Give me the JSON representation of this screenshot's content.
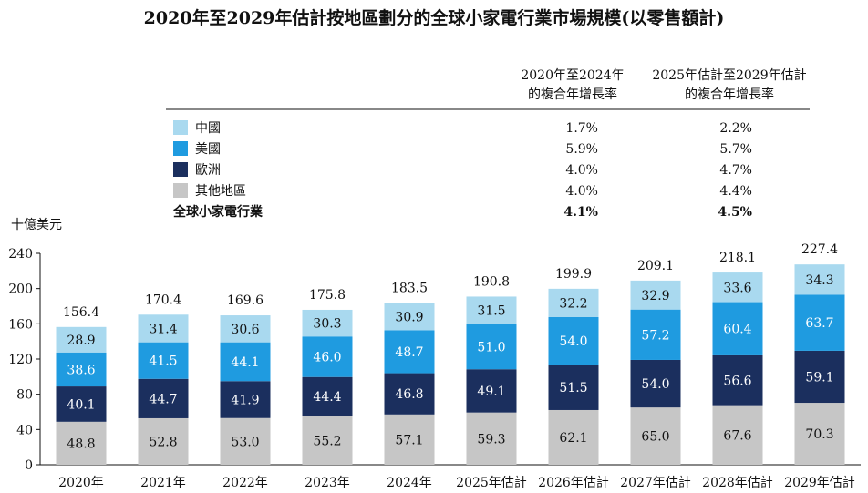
{
  "chart_data": {
    "type": "bar",
    "stacked": true,
    "title": "2020年至2029年估計按地區劃分的全球小家電行業市場規模(以零售額計)",
    "ylabel": "十億美元",
    "ylim": [
      0,
      240
    ],
    "yticks": [
      "0",
      "40",
      "80",
      "120",
      "160",
      "200",
      "240"
    ],
    "categories": [
      "2020年",
      "2021年",
      "2022年",
      "2023年",
      "2024年",
      "2025年估計",
      "2026年估計",
      "2027年估計",
      "2028年估計",
      "2029年估計"
    ],
    "totals": [
      "156.4",
      "170.4",
      "169.6",
      "175.8",
      "183.5",
      "190.8",
      "199.9",
      "209.1",
      "218.1",
      "227.4"
    ],
    "series": [
      {
        "name": "其他地區",
        "color": "#c6c6c6",
        "text_color": "#111111",
        "values": [
          48.8,
          52.8,
          53.0,
          55.2,
          57.1,
          59.3,
          62.1,
          65.0,
          67.6,
          70.3
        ],
        "labels": [
          "48.8",
          "52.8",
          "53.0",
          "55.2",
          "57.1",
          "59.3",
          "62.1",
          "65.0",
          "67.6",
          "70.3"
        ]
      },
      {
        "name": "歐洲",
        "color": "#1b2f5e",
        "text_color": "#ffffff",
        "values": [
          40.1,
          44.7,
          41.9,
          44.4,
          46.8,
          49.1,
          51.5,
          54.0,
          56.6,
          59.1
        ],
        "labels": [
          "40.1",
          "44.7",
          "41.9",
          "44.4",
          "46.8",
          "49.1",
          "51.5",
          "54.0",
          "56.6",
          "59.1"
        ]
      },
      {
        "name": "美國",
        "color": "#1f9be0",
        "text_color": "#ffffff",
        "values": [
          38.6,
          41.5,
          44.1,
          46.0,
          48.7,
          51.0,
          54.0,
          57.2,
          60.4,
          63.7
        ],
        "labels": [
          "38.6",
          "41.5",
          "44.1",
          "46.0",
          "48.7",
          "51.0",
          "54.0",
          "57.2",
          "60.4",
          "63.7"
        ]
      },
      {
        "name": "中國",
        "color": "#a9d9ef",
        "text_color": "#111111",
        "values": [
          28.9,
          31.4,
          30.6,
          30.3,
          30.9,
          31.5,
          32.2,
          32.9,
          33.6,
          34.3
        ],
        "labels": [
          "28.9",
          "31.4",
          "30.6",
          "30.3",
          "30.9",
          "31.5",
          "32.2",
          "32.9",
          "33.6",
          "34.3"
        ]
      }
    ],
    "grid": false
  },
  "cagr_table": {
    "header_1": [
      "2020年至2024年",
      "的複合年增長率"
    ],
    "header_2": [
      "2025年估計至2029年估計",
      "的複合年增長率"
    ],
    "rows": [
      {
        "name": "中國",
        "color": "#a9d9ef",
        "cagr_1": "1.7%",
        "cagr_2": "2.2%",
        "bold": false
      },
      {
        "name": "美國",
        "color": "#1f9be0",
        "cagr_1": "5.9%",
        "cagr_2": "5.7%",
        "bold": false
      },
      {
        "name": "歐洲",
        "color": "#1b2f5e",
        "cagr_1": "4.0%",
        "cagr_2": "4.7%",
        "bold": false
      },
      {
        "name": "其他地區",
        "color": "#c6c6c6",
        "cagr_1": "4.0%",
        "cagr_2": "4.4%",
        "bold": false
      },
      {
        "name": "全球小家電行業",
        "color": "",
        "cagr_1": "4.1%",
        "cagr_2": "4.5%",
        "bold": true
      }
    ]
  }
}
